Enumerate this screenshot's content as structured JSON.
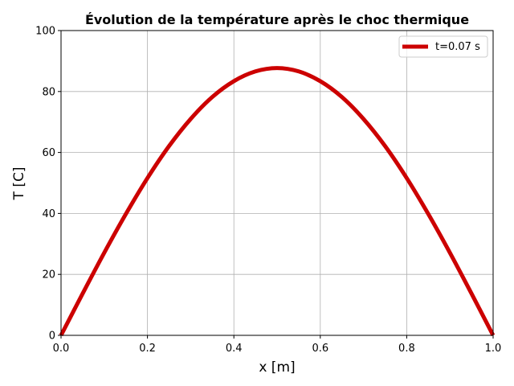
{
  "chart_data": {
    "type": "line",
    "title": "Évolution de la température après le choc thermique",
    "xlabel": "x [m]",
    "ylabel": "T [C]",
    "xlim": [
      0,
      1
    ],
    "ylim": [
      0,
      100
    ],
    "xticks": [
      0,
      0.2,
      0.4,
      0.6,
      0.8,
      1.0
    ],
    "xtick_labels": [
      "0.0",
      "0.2",
      "0.4",
      "0.6",
      "0.8",
      "1.0"
    ],
    "yticks": [
      0,
      20,
      40,
      60,
      80,
      100
    ],
    "ytick_labels": [
      "0",
      "20",
      "40",
      "60",
      "80",
      "100"
    ],
    "grid": true,
    "legend_position": "top-right",
    "series": [
      {
        "name": "t=0.07 s",
        "color": "#cc0000",
        "x": [
          0,
          0.05,
          0.1,
          0.15,
          0.2,
          0.25,
          0.3,
          0.35,
          0.4,
          0.45,
          0.5,
          0.55,
          0.6,
          0.65,
          0.7,
          0.75,
          0.8,
          0.85,
          0.9,
          0.95,
          1.0
        ],
        "y": [
          0,
          13.7,
          27.1,
          39.8,
          51.6,
          62.1,
          71.0,
          78.2,
          83.4,
          86.6,
          87.7,
          86.6,
          83.4,
          78.2,
          71.0,
          62.1,
          51.6,
          39.8,
          27.1,
          13.7,
          0
        ]
      }
    ]
  }
}
